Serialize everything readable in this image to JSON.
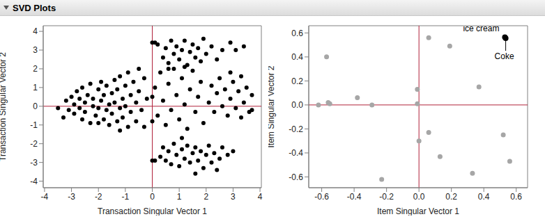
{
  "header": "SVD Plots",
  "chart_data": [
    {
      "type": "scatter",
      "x_label": "Transaction Singular Vector 1",
      "y_label": "Transaction Singular Vector 2",
      "xlim": [
        -4.05,
        4.05
      ],
      "ylim": [
        -4.35,
        4.3
      ],
      "xticks": [
        -4,
        -3,
        -2,
        -1,
        0,
        1,
        2,
        3,
        4
      ],
      "yticks": [
        -4,
        -3,
        -2,
        -1,
        0,
        1,
        2,
        3,
        4
      ],
      "grid": false,
      "ref_x": 0,
      "ref_y": 0,
      "series": [
        {
          "color": "#000000",
          "marker": "circle",
          "points": [
            [
              -3.5,
              -0.1
            ],
            [
              -3.2,
              0.3
            ],
            [
              -3.1,
              -0.2
            ],
            [
              -3.0,
              0.5
            ],
            [
              -2.9,
              0.1
            ],
            [
              -2.9,
              -0.4
            ],
            [
              -2.8,
              0.8
            ],
            [
              -2.7,
              -0.1
            ],
            [
              -2.7,
              0.4
            ],
            [
              -2.6,
              -0.7
            ],
            [
              -2.6,
              1.0
            ],
            [
              -2.5,
              0.2
            ],
            [
              -2.5,
              -0.3
            ],
            [
              -2.4,
              0.6
            ],
            [
              -2.3,
              -0.9
            ],
            [
              -2.3,
              1.2
            ],
            [
              -2.2,
              0.0
            ],
            [
              -2.2,
              0.4
            ],
            [
              -2.1,
              -0.5
            ],
            [
              -2.0,
              0.9
            ],
            [
              -2.0,
              -0.1
            ],
            [
              -1.9,
              1.3
            ],
            [
              -1.9,
              0.3
            ],
            [
              -1.8,
              -0.7
            ],
            [
              -1.8,
              0.6
            ],
            [
              -1.7,
              -0.2
            ],
            [
              -1.7,
              1.1
            ],
            [
              -1.6,
              0.1
            ],
            [
              -1.6,
              -1.0
            ],
            [
              -1.5,
              0.7
            ],
            [
              -1.5,
              -0.4
            ],
            [
              -1.4,
              1.4
            ],
            [
              -1.4,
              0.2
            ],
            [
              -1.3,
              -0.8
            ],
            [
              -1.3,
              0.9
            ],
            [
              -1.2,
              -0.1
            ],
            [
              -1.2,
              1.6
            ],
            [
              -1.1,
              0.4
            ],
            [
              -1.1,
              -0.6
            ],
            [
              -1.0,
              1.1
            ],
            [
              -1.0,
              0.0
            ],
            [
              -0.9,
              -1.1
            ],
            [
              -0.9,
              1.8
            ],
            [
              -0.8,
              0.6
            ],
            [
              -0.8,
              -0.3
            ],
            [
              -0.7,
              1.3
            ],
            [
              -0.6,
              0.2
            ],
            [
              -0.6,
              -0.8
            ],
            [
              -0.5,
              2.0
            ],
            [
              -0.5,
              0.8
            ],
            [
              -0.4,
              -0.2
            ],
            [
              -0.3,
              1.5
            ],
            [
              -0.3,
              -1.1
            ],
            [
              -0.2,
              0.4
            ],
            [
              -3.3,
              -0.6
            ],
            [
              -2.0,
              -0.9
            ],
            [
              -1.2,
              -1.3
            ],
            [
              0.1,
              1.0
            ],
            [
              0.2,
              -0.5
            ],
            [
              0.3,
              1.8
            ],
            [
              0.4,
              0.3
            ],
            [
              0.5,
              -1.0
            ],
            [
              0.6,
              1.2
            ],
            [
              0.7,
              -0.2
            ],
            [
              0.8,
              2.0
            ],
            [
              0.9,
              0.6
            ],
            [
              1.0,
              -0.7
            ],
            [
              1.1,
              1.5
            ],
            [
              1.2,
              0.1
            ],
            [
              1.3,
              -1.2
            ],
            [
              1.4,
              0.9
            ],
            [
              1.5,
              1.9
            ],
            [
              1.6,
              -0.3
            ],
            [
              1.7,
              0.5
            ],
            [
              1.8,
              1.3
            ],
            [
              1.9,
              -0.9
            ],
            [
              0.0,
              0.5
            ],
            [
              0.0,
              -0.8
            ],
            [
              0.0,
              3.4
            ],
            [
              0.1,
              3.4
            ],
            [
              0.2,
              3.3
            ],
            [
              0.4,
              2.6
            ],
            [
              0.5,
              3.1
            ],
            [
              0.6,
              2.3
            ],
            [
              0.7,
              3.5
            ],
            [
              0.8,
              2.8
            ],
            [
              0.9,
              3.2
            ],
            [
              1.0,
              2.5
            ],
            [
              1.1,
              3.0
            ],
            [
              1.2,
              3.5
            ],
            [
              1.3,
              2.2
            ],
            [
              1.4,
              2.9
            ],
            [
              1.5,
              3.3
            ],
            [
              1.6,
              2.6
            ],
            [
              1.7,
              3.1
            ],
            [
              1.8,
              2.4
            ],
            [
              1.9,
              3.6
            ],
            [
              2.0,
              2.8
            ],
            [
              2.2,
              3.2
            ],
            [
              2.4,
              2.5
            ],
            [
              2.6,
              3.0
            ],
            [
              2.9,
              3.4
            ],
            [
              3.1,
              3.0
            ],
            [
              3.4,
              3.2
            ],
            [
              0.6,
              2.0
            ],
            [
              1.2,
              2.1
            ],
            [
              0.0,
              -2.9
            ],
            [
              0.1,
              -2.9
            ],
            [
              0.3,
              -2.7
            ],
            [
              0.4,
              -2.2
            ],
            [
              0.5,
              -2.9
            ],
            [
              0.6,
              -2.4
            ],
            [
              0.7,
              -3.1
            ],
            [
              0.8,
              -2.0
            ],
            [
              0.9,
              -2.6
            ],
            [
              1.0,
              -3.2
            ],
            [
              1.1,
              -2.3
            ],
            [
              1.2,
              -2.8
            ],
            [
              1.3,
              -2.1
            ],
            [
              1.4,
              -3.0
            ],
            [
              1.5,
              -2.5
            ],
            [
              1.6,
              -2.2
            ],
            [
              1.7,
              -2.9
            ],
            [
              1.8,
              -2.4
            ],
            [
              1.9,
              -3.3
            ],
            [
              2.0,
              -2.6
            ],
            [
              2.1,
              -2.1
            ],
            [
              2.2,
              -3.0
            ],
            [
              2.3,
              -2.5
            ],
            [
              2.5,
              -2.8
            ],
            [
              2.6,
              -2.2
            ],
            [
              2.8,
              -2.6
            ],
            [
              3.0,
              -2.4
            ],
            [
              1.6,
              -3.6
            ],
            [
              2.4,
              -3.4
            ],
            [
              1.1,
              -1.7
            ],
            [
              2.1,
              0.2
            ],
            [
              2.2,
              1.1
            ],
            [
              2.3,
              -0.3
            ],
            [
              2.4,
              0.7
            ],
            [
              2.5,
              1.5
            ],
            [
              2.6,
              0.0
            ],
            [
              2.7,
              0.9
            ],
            [
              2.8,
              -0.5
            ],
            [
              2.9,
              0.4
            ],
            [
              3.0,
              1.3
            ],
            [
              3.1,
              -0.1
            ],
            [
              3.2,
              0.8
            ],
            [
              3.3,
              1.6
            ],
            [
              3.4,
              0.2
            ],
            [
              3.5,
              1.0
            ],
            [
              3.6,
              -0.3
            ],
            [
              3.7,
              0.6
            ],
            [
              3.7,
              -0.2
            ],
            [
              3.3,
              -0.6
            ],
            [
              2.9,
              1.8
            ]
          ]
        }
      ]
    },
    {
      "type": "scatter",
      "x_label": "Item Singular Vector 1",
      "y_label": "Item Singular Vector 2",
      "xlim": [
        -0.68,
        0.67
      ],
      "ylim": [
        -0.69,
        0.66
      ],
      "xticks": [
        -0.6,
        -0.4,
        -0.2,
        {
          "value": 0,
          "label": "0.0"
        },
        0.2,
        0.4,
        0.6
      ],
      "yticks": [
        -0.6,
        -0.4,
        -0.2,
        {
          "value": 0,
          "label": "0.0"
        },
        0.2,
        0.4,
        0.6
      ],
      "grid": false,
      "ref_x": 0,
      "ref_y": 0,
      "series": [
        {
          "color": "#a6a6a6",
          "marker": "circle",
          "points": [
            [
              -0.62,
              0.0
            ],
            [
              -0.57,
              0.4
            ],
            [
              -0.56,
              0.02
            ],
            [
              -0.55,
              0.01
            ],
            [
              -0.38,
              0.06
            ],
            [
              -0.29,
              0.0
            ],
            [
              -0.23,
              -0.62
            ],
            [
              -0.01,
              0.13
            ],
            [
              -0.01,
              0.01
            ],
            [
              0.0,
              -0.3
            ],
            [
              0.06,
              0.56
            ],
            [
              0.06,
              -0.23
            ],
            [
              0.13,
              -0.43
            ],
            [
              0.19,
              0.49
            ],
            [
              0.33,
              -0.57
            ],
            [
              0.37,
              0.15
            ],
            [
              0.52,
              -0.25
            ],
            [
              0.56,
              -0.47
            ]
          ]
        },
        {
          "color": "#000000",
          "marker": "circle",
          "points": [
            [
              0.53,
              0.565
            ],
            [
              0.535,
              0.555
            ]
          ],
          "labels": [
            "ice cream",
            "Coke"
          ]
        }
      ]
    }
  ]
}
